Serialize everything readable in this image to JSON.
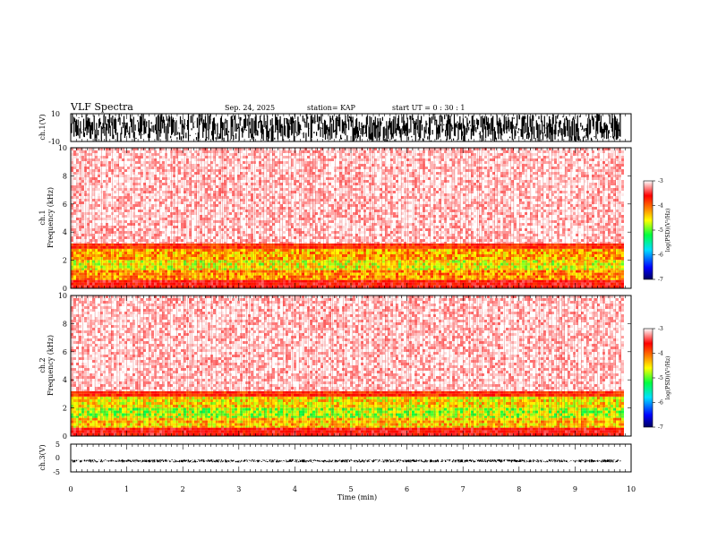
{
  "header": {
    "title": "VLF Spectra",
    "date": "Sep. 24, 2025",
    "station": "station= KAP",
    "start_ut": "start  UT =   0 : 30 : 1"
  },
  "chart_data": [
    {
      "type": "line",
      "panel": "ch1-waveform",
      "ylabel": "ch.1(V)",
      "ylim": [
        -10,
        10
      ],
      "yticklabels": [
        "10",
        "-10"
      ],
      "signal_range": [
        -10,
        10
      ],
      "xlim": [
        0,
        10
      ]
    },
    {
      "type": "heatmap",
      "panel": "ch1-spectrogram",
      "ylabel_top": "ch.1",
      "ylabel": "Frequency  (kHz)",
      "ylim": [
        0,
        10
      ],
      "yticks": [
        0,
        2,
        4,
        6,
        8,
        10
      ],
      "xlim": [
        0,
        10
      ],
      "data_end_min": 9.85,
      "bands": [
        {
          "from": 0,
          "to": 0.6,
          "level": -3.6
        },
        {
          "from": 0.6,
          "to": 1.3,
          "level": -4.2
        },
        {
          "from": 1.3,
          "to": 2.0,
          "level": -4.6
        },
        {
          "from": 2.0,
          "to": 2.8,
          "level": -4.3
        },
        {
          "from": 2.8,
          "to": 3.2,
          "level": -3.8
        },
        {
          "from": 3.2,
          "to": 10,
          "level": -3.1
        }
      ],
      "colorbar": {
        "label": "log(PSD)(V²/Hz)",
        "range": [
          -7,
          -3
        ],
        "ticks": [
          "-3",
          "-4",
          "-5",
          "-6",
          "-7"
        ]
      }
    },
    {
      "type": "heatmap",
      "panel": "ch2-spectrogram",
      "ylabel_top": "ch.2",
      "ylabel": "Frequency  (kHz)",
      "ylim": [
        0,
        10
      ],
      "yticks": [
        0,
        2,
        4,
        6,
        8,
        10
      ],
      "xlim": [
        0,
        10
      ],
      "data_end_min": 9.85,
      "bands": [
        {
          "from": 0,
          "to": 0.6,
          "level": -3.6
        },
        {
          "from": 0.6,
          "to": 1.3,
          "level": -4.4
        },
        {
          "from": 1.3,
          "to": 2.0,
          "level": -4.8
        },
        {
          "from": 2.0,
          "to": 2.8,
          "level": -4.5
        },
        {
          "from": 2.8,
          "to": 3.2,
          "level": -3.8
        },
        {
          "from": 3.2,
          "to": 10,
          "level": -3.1
        }
      ],
      "colorbar": {
        "label": "log(PSD)(V²/Hz)",
        "range": [
          -7,
          -3
        ],
        "ticks": [
          "-3",
          "-4",
          "-5",
          "-6",
          "-7"
        ]
      }
    },
    {
      "type": "line",
      "panel": "ch3-waveform",
      "ylabel": "ch.3(V)",
      "ylim": [
        -5,
        5
      ],
      "yticklabels": [
        "5",
        "0",
        "-5"
      ],
      "signal_range": [
        -1.6,
        -0.5
      ],
      "xlim": [
        0,
        10
      ]
    }
  ],
  "x_axis": {
    "label": "Time  (min)",
    "ticks": [
      "0",
      "1",
      "2",
      "3",
      "4",
      "5",
      "6",
      "7",
      "8",
      "9",
      "10"
    ]
  },
  "colors": {
    "background": "#ffffff",
    "trace": "#000000",
    "colormap": [
      "#000080",
      "#0000ff",
      "#00ffff",
      "#00ff00",
      "#ffff00",
      "#ff8000",
      "#ff0000",
      "#ffffff"
    ]
  }
}
